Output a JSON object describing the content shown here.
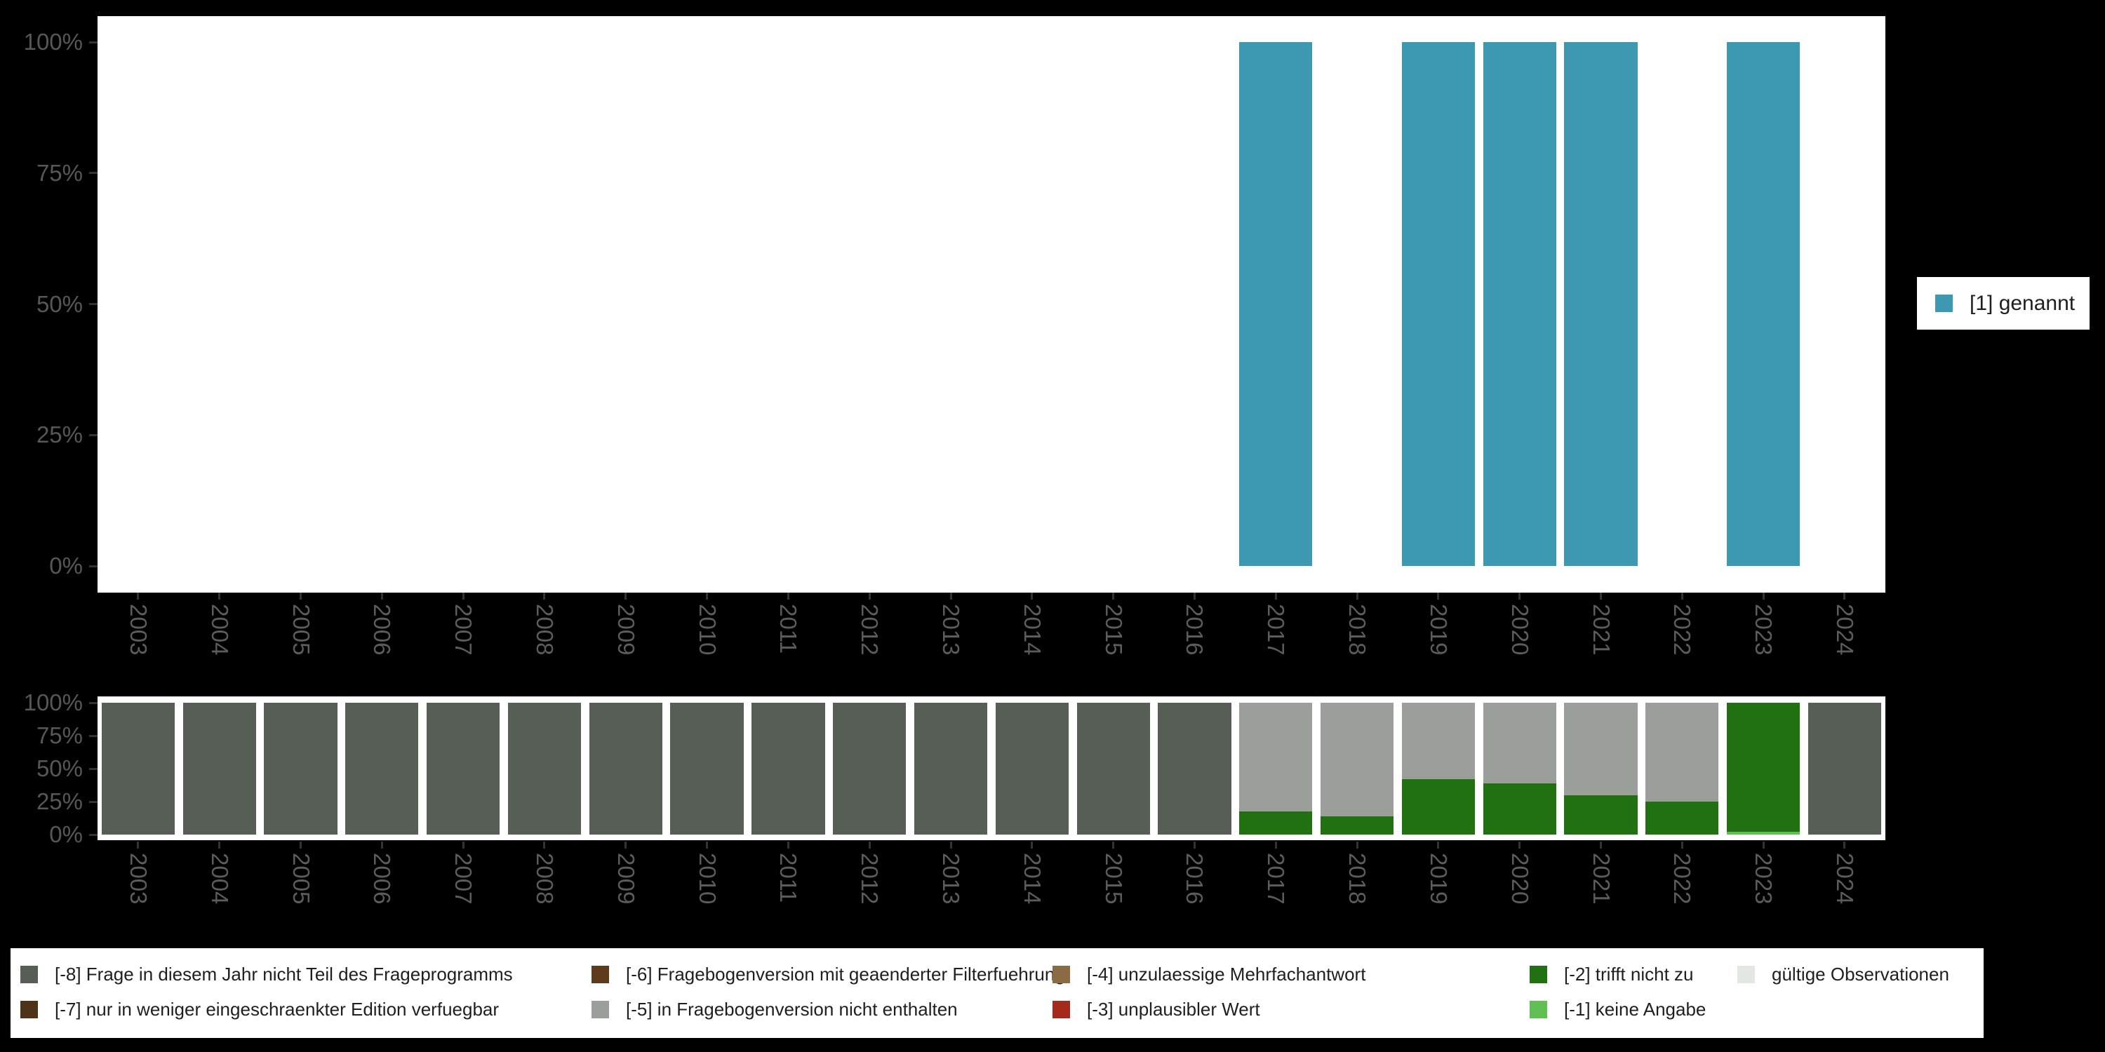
{
  "colors": {
    "answer_teal": "#3C99AF",
    "missing_dark_gray": "#565E56",
    "missing_light_gray": "#9AA099",
    "missing_dark_green": "#217113",
    "missing_light_green": "#5FBF53",
    "missing_brown_dark": "#4E3319",
    "missing_brown": "#5E3B1B",
    "missing_tan": "#8A6B44",
    "missing_red": "#A5291D",
    "valid_light_gray": "#E3E7E1",
    "plot_background": "#FFFFFF",
    "page_background": "#000000",
    "axis_text": "#575757",
    "tick": "#333333",
    "legend_text": "#1F1F1F"
  },
  "years": [
    "2003",
    "2004",
    "2005",
    "2006",
    "2007",
    "2008",
    "2009",
    "2010",
    "2011",
    "2012",
    "2013",
    "2014",
    "2015",
    "2016",
    "2017",
    "2018",
    "2019",
    "2020",
    "2021",
    "2022",
    "2023",
    "2024"
  ],
  "y_tick_labels": [
    "100%",
    "75%",
    "50%",
    "25%",
    "0%"
  ],
  "top_legend": {
    "label": "[1] genannt",
    "color_key": "answer_teal"
  },
  "chart_data": [
    {
      "type": "bar",
      "title": "",
      "categories": [
        "2003",
        "2004",
        "2005",
        "2006",
        "2007",
        "2008",
        "2009",
        "2010",
        "2011",
        "2012",
        "2013",
        "2014",
        "2015",
        "2016",
        "2017",
        "2018",
        "2019",
        "2020",
        "2021",
        "2022",
        "2023",
        "2024"
      ],
      "series": [
        {
          "name": "[1] genannt",
          "color_key": "answer_teal",
          "values": [
            0,
            0,
            0,
            0,
            0,
            0,
            0,
            0,
            0,
            0,
            0,
            0,
            0,
            0,
            100,
            0,
            100,
            100,
            100,
            0,
            100,
            0
          ]
        }
      ],
      "xlabel": "",
      "ylabel": "",
      "ylim": [
        0,
        100
      ],
      "y_ticks_percent": [
        0,
        25,
        50,
        75,
        100
      ],
      "x_tick_rotation": 90,
      "grid": false,
      "legend_position": "right"
    },
    {
      "type": "stacked-bar",
      "title": "",
      "categories": [
        "2003",
        "2004",
        "2005",
        "2006",
        "2007",
        "2008",
        "2009",
        "2010",
        "2011",
        "2012",
        "2013",
        "2014",
        "2015",
        "2016",
        "2017",
        "2018",
        "2019",
        "2020",
        "2021",
        "2022",
        "2023",
        "2024"
      ],
      "series": [
        {
          "name": "[-1] keine Angabe",
          "color_key": "missing_light_green",
          "values": [
            0,
            0,
            0,
            0,
            0,
            0,
            0,
            0,
            0,
            0,
            0,
            0,
            0,
            0,
            0,
            0,
            0,
            0,
            0,
            0,
            2,
            0
          ]
        },
        {
          "name": "[-2] trifft nicht zu",
          "color_key": "missing_dark_green",
          "values": [
            0,
            0,
            0,
            0,
            0,
            0,
            0,
            0,
            0,
            0,
            0,
            0,
            0,
            0,
            17.5,
            14,
            42,
            39,
            30,
            25,
            98,
            0
          ]
        },
        {
          "name": "[-5] in Fragebogenversion nicht enthalten",
          "color_key": "missing_light_gray",
          "values": [
            0,
            0,
            0,
            0,
            0,
            0,
            0,
            0,
            0,
            0,
            0,
            0,
            0,
            0,
            82.5,
            86,
            58,
            61,
            70,
            75,
            0,
            0
          ]
        },
        {
          "name": "[-8] Frage in diesem Jahr nicht Teil des Frageprogramms",
          "color_key": "missing_dark_gray",
          "values": [
            100,
            100,
            100,
            100,
            100,
            100,
            100,
            100,
            100,
            100,
            100,
            100,
            100,
            100,
            0,
            0,
            0,
            0,
            0,
            0,
            0,
            100
          ]
        }
      ],
      "xlabel": "",
      "ylabel": "",
      "ylim": [
        0,
        100
      ],
      "y_ticks_percent": [
        0,
        25,
        50,
        75,
        100
      ],
      "x_tick_rotation": 90,
      "grid": false,
      "legend_position": "bottom"
    }
  ],
  "bottom_legend": {
    "items": [
      {
        "label": "[-8] Frage in diesem Jahr nicht Teil des Frageprogramms",
        "color_key": "missing_dark_gray",
        "col": 0,
        "row": 0
      },
      {
        "label": "[-7] nur in weniger eingeschraenkter Edition verfuegbar",
        "color_key": "missing_brown_dark",
        "col": 0,
        "row": 1
      },
      {
        "label": "[-6] Fragebogenversion mit geaenderter Filterfuehrung",
        "color_key": "missing_brown",
        "col": 1,
        "row": 0
      },
      {
        "label": "[-5] in Fragebogenversion nicht enthalten",
        "color_key": "missing_light_gray",
        "col": 1,
        "row": 1
      },
      {
        "label": "[-4] unzulaessige Mehrfachantwort",
        "color_key": "missing_tan",
        "col": 2,
        "row": 0
      },
      {
        "label": "[-3] unplausibler Wert",
        "color_key": "missing_red",
        "col": 2,
        "row": 1
      },
      {
        "label": "[-2] trifft nicht zu",
        "color_key": "missing_dark_green",
        "col": 3,
        "row": 0
      },
      {
        "label": "[-1] keine Angabe",
        "color_key": "missing_light_green",
        "col": 3,
        "row": 1
      },
      {
        "label": "gültige Observationen",
        "color_key": "valid_light_gray",
        "col": 4,
        "row": 0
      }
    ]
  }
}
